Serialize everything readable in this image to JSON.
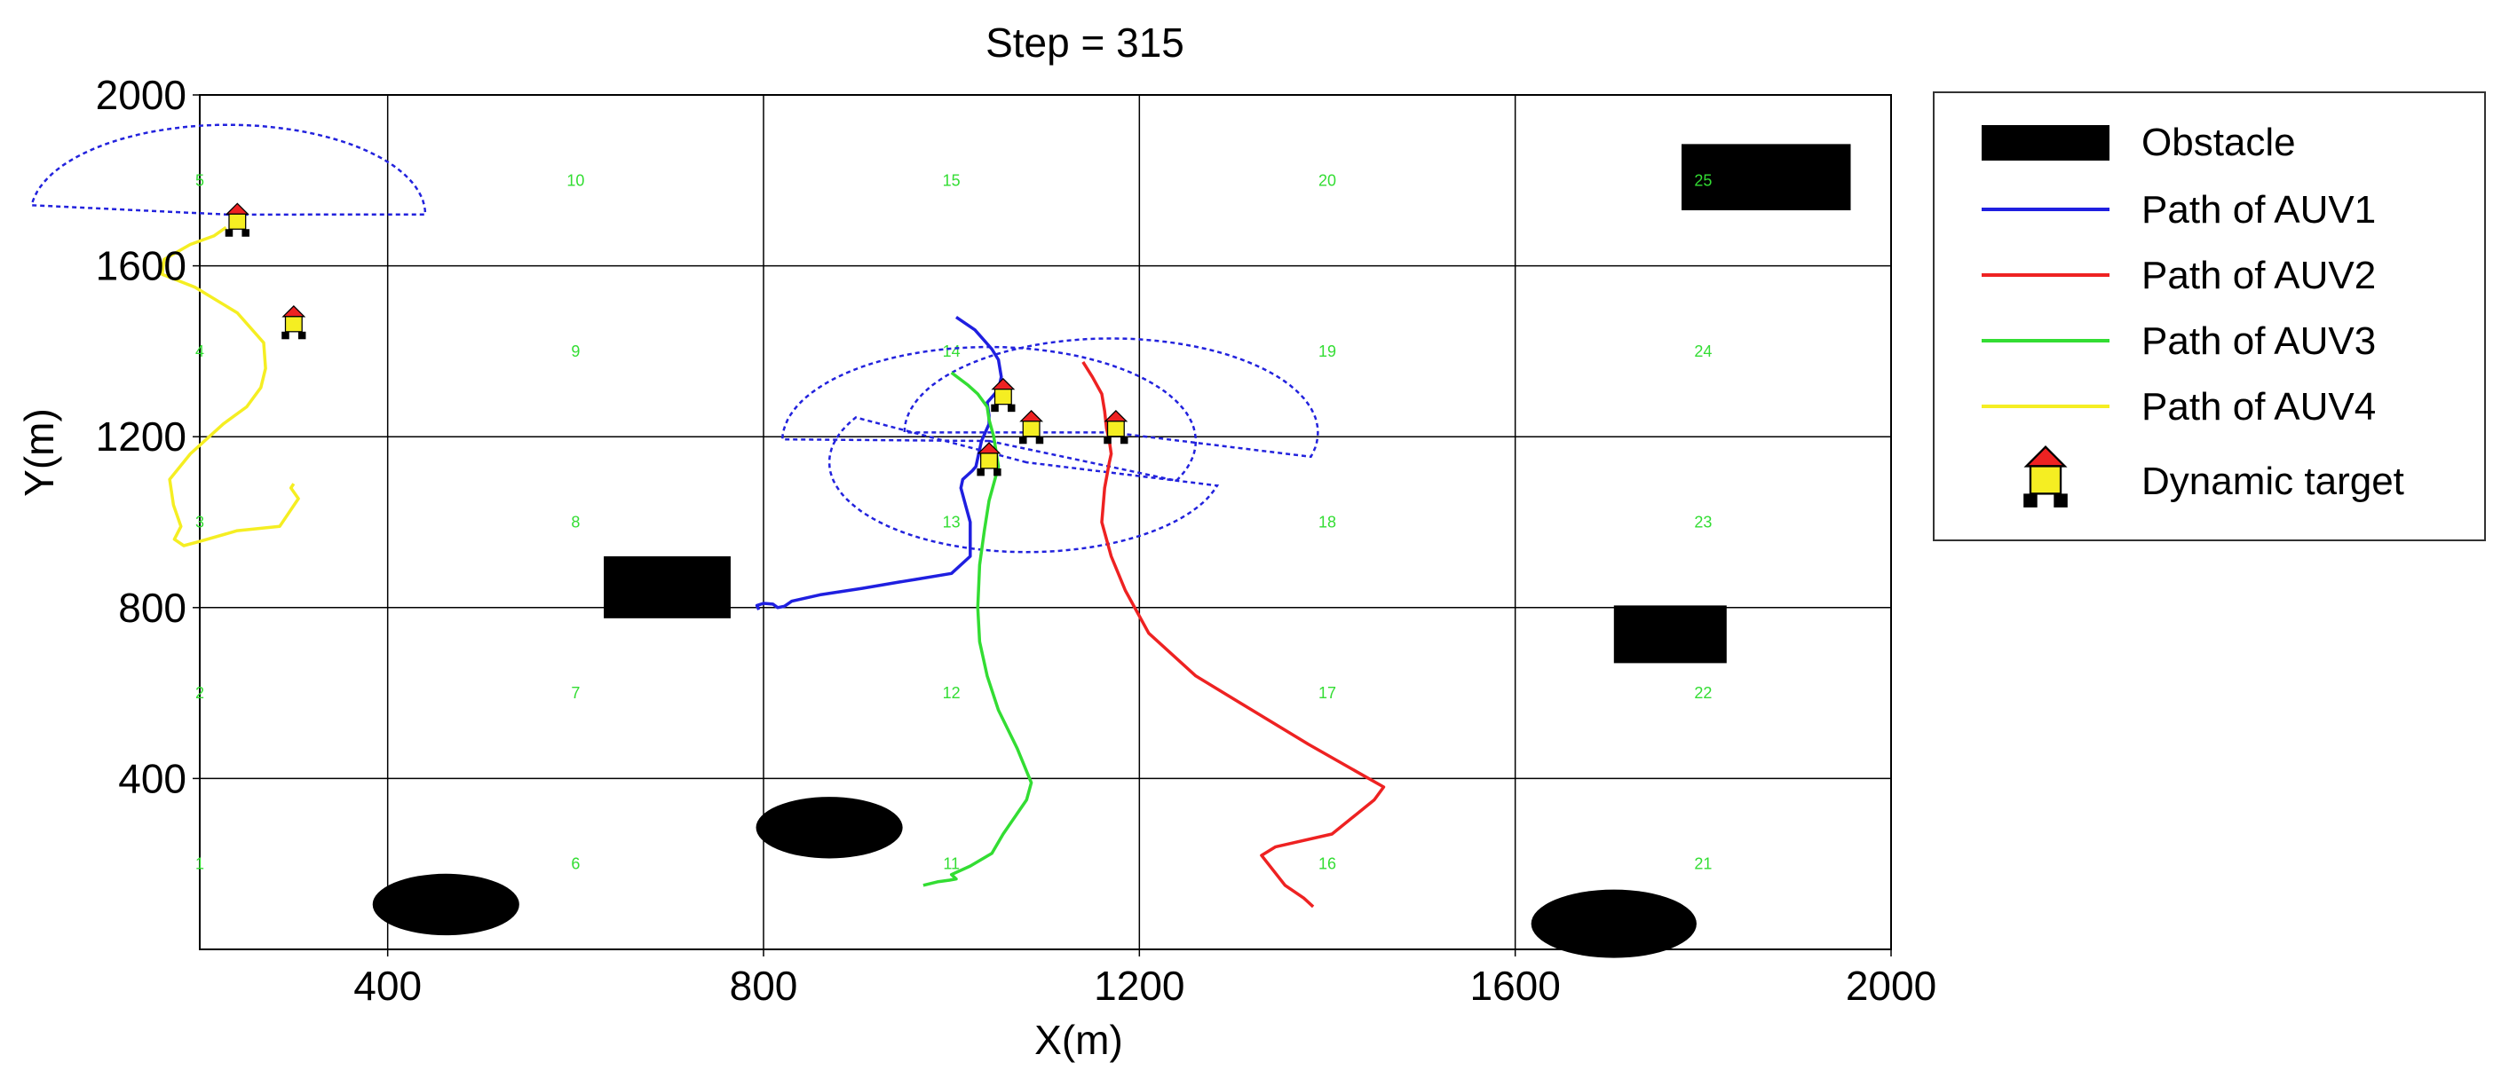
{
  "chart_data": {
    "type": "line",
    "title": "Step = 315",
    "xlabel": "X(m)",
    "ylabel": "Y(m)",
    "xlim": [
      200,
      2000
    ],
    "ylim": [
      0,
      2000
    ],
    "x_ticks": [
      400,
      800,
      1200,
      1600,
      2000
    ],
    "y_ticks": [
      400,
      800,
      1200,
      1600,
      2000
    ],
    "x_tick_labels": [
      "400",
      "800",
      "1200",
      "1600",
      "2000"
    ],
    "y_tick_labels": [
      "400",
      "800",
      "1200",
      "1600",
      "2000"
    ],
    "grid": true,
    "legend_position": "outside-right",
    "legend": [
      {
        "label": "Obstacle",
        "kind": "rect",
        "color": "#000000"
      },
      {
        "label": "Path of AUV1",
        "kind": "line",
        "color": "#1f1fe0"
      },
      {
        "label": "Path of AUV2",
        "kind": "line",
        "color": "#ee2222"
      },
      {
        "label": "Path of AUV3",
        "kind": "line",
        "color": "#33dd33"
      },
      {
        "label": "Path of AUV4",
        "kind": "line",
        "color": "#f5ee22"
      },
      {
        "label": "Dynamic target",
        "kind": "target",
        "color": "#f5ee22"
      }
    ],
    "region_labels": [
      {
        "text": "1",
        "x": 200,
        "y": 200
      },
      {
        "text": "2",
        "x": 200,
        "y": 600
      },
      {
        "text": "3",
        "x": 200,
        "y": 1000
      },
      {
        "text": "4",
        "x": 200,
        "y": 1400
      },
      {
        "text": "5",
        "x": 200,
        "y": 1800
      },
      {
        "text": "6",
        "x": 600,
        "y": 200
      },
      {
        "text": "7",
        "x": 600,
        "y": 600
      },
      {
        "text": "8",
        "x": 600,
        "y": 1000
      },
      {
        "text": "9",
        "x": 600,
        "y": 1400
      },
      {
        "text": "10",
        "x": 600,
        "y": 1800
      },
      {
        "text": "11",
        "x": 1000,
        "y": 200
      },
      {
        "text": "12",
        "x": 1000,
        "y": 600
      },
      {
        "text": "13",
        "x": 1000,
        "y": 1000
      },
      {
        "text": "14",
        "x": 1000,
        "y": 1400
      },
      {
        "text": "15",
        "x": 1000,
        "y": 1800
      },
      {
        "text": "16",
        "x": 1400,
        "y": 200
      },
      {
        "text": "17",
        "x": 1400,
        "y": 600
      },
      {
        "text": "18",
        "x": 1400,
        "y": 1000
      },
      {
        "text": "19",
        "x": 1400,
        "y": 1400
      },
      {
        "text": "20",
        "x": 1400,
        "y": 1800
      },
      {
        "text": "21",
        "x": 1800,
        "y": 200
      },
      {
        "text": "22",
        "x": 1800,
        "y": 600
      },
      {
        "text": "23",
        "x": 1800,
        "y": 1000
      },
      {
        "text": "24",
        "x": 1800,
        "y": 1400
      },
      {
        "text": "25",
        "x": 1800,
        "y": 1800
      }
    ],
    "obstacles": [
      {
        "shape": "rect",
        "x": [
          630,
          765
        ],
        "y": [
          775,
          920
        ]
      },
      {
        "shape": "rect",
        "x": [
          1705,
          1825
        ],
        "y": [
          670,
          805
        ]
      },
      {
        "shape": "rect",
        "x": [
          1777,
          1957
        ],
        "y": [
          1730,
          1885
        ]
      },
      {
        "shape": "ellipse",
        "cx": 462,
        "cy": 105,
        "rx": 78,
        "ry": 72
      },
      {
        "shape": "ellipse",
        "cx": 870,
        "cy": 285,
        "rx": 78,
        "ry": 72
      },
      {
        "shape": "ellipse",
        "cx": 1705,
        "cy": 60,
        "rx": 88,
        "ry": 80
      }
    ],
    "series": [
      {
        "name": "Path of AUV1",
        "color": "#1f1fe0",
        "x": [
          795,
          793,
          800,
          810,
          815,
          822,
          830,
          860,
          905,
          945,
          962,
          1000,
          1020,
          1020,
          1015,
          1010,
          1012,
          1017,
          1022,
          1026,
          1028,
          1032,
          1036,
          1040,
          1040,
          1038,
          1050,
          1053,
          1050,
          1043,
          1025,
          1005
        ],
        "y": [
          795,
          805,
          810,
          808,
          800,
          803,
          815,
          830,
          845,
          860,
          866,
          880,
          920,
          1000,
          1040,
          1080,
          1100,
          1110,
          1120,
          1130,
          1150,
          1190,
          1210,
          1230,
          1250,
          1280,
          1310,
          1340,
          1380,
          1405,
          1450,
          1480
        ]
      },
      {
        "name": "Path of AUV2",
        "color": "#ee2222",
        "x": [
          1385,
          1375,
          1355,
          1330,
          1345,
          1405,
          1450,
          1460,
          1420,
          1380,
          1320,
          1260,
          1210,
          1185,
          1170,
          1160,
          1163,
          1168,
          1170,
          1168,
          1165,
          1163,
          1160,
          1150,
          1140
        ],
        "y": [
          100,
          120,
          150,
          220,
          240,
          270,
          350,
          380,
          430,
          480,
          560,
          640,
          740,
          840,
          920,
          1000,
          1080,
          1140,
          1160,
          1190,
          1220,
          1260,
          1300,
          1340,
          1375
        ]
      },
      {
        "name": "Path of AUV3",
        "color": "#33dd33",
        "x": [
          970,
          985,
          998,
          1005,
          1000,
          1020,
          1043,
          1055,
          1080,
          1085,
          1070,
          1050,
          1038,
          1030,
          1028,
          1030,
          1035,
          1040,
          1045,
          1050,
          1045,
          1040,
          1038,
          1028,
          1018,
          1000
        ],
        "y": [
          150,
          158,
          162,
          165,
          175,
          195,
          225,
          270,
          350,
          390,
          470,
          560,
          640,
          720,
          800,
          900,
          980,
          1050,
          1090,
          1130,
          1200,
          1240,
          1270,
          1300,
          1320,
          1350
        ]
      },
      {
        "name": "Path of AUV4",
        "color": "#f5ee22",
        "x": [
          300,
          297,
          305,
          285,
          240,
          200,
          183,
          173,
          180,
          172,
          168,
          190,
          225,
          250,
          265,
          270,
          268,
          240,
          195,
          160,
          162,
          190,
          215,
          228
        ],
        "y": [
          1090,
          1080,
          1055,
          990,
          980,
          955,
          945,
          960,
          990,
          1040,
          1100,
          1160,
          1230,
          1270,
          1315,
          1360,
          1420,
          1490,
          1550,
          1580,
          1615,
          1650,
          1670,
          1690
        ]
      }
    ],
    "sensor_arcs": [
      {
        "cx": 230,
        "cy": 1720,
        "r": 210,
        "start": 0,
        "end": 175
      },
      {
        "cx": 1040,
        "cy": 1190,
        "r": 220,
        "start": -25,
        "end": 180
      },
      {
        "cx": 1080,
        "cy": 1140,
        "r": 210,
        "start": 150,
        "end": 345
      },
      {
        "cx": 1170,
        "cy": 1210,
        "r": 220,
        "start": -15,
        "end": 180
      }
    ],
    "targets": [
      {
        "x": 240,
        "y": 1700
      },
      {
        "x": 300,
        "y": 1460
      },
      {
        "x": 1055,
        "y": 1290
      },
      {
        "x": 1085,
        "y": 1215
      },
      {
        "x": 1040,
        "y": 1140
      },
      {
        "x": 1175,
        "y": 1215
      }
    ]
  }
}
